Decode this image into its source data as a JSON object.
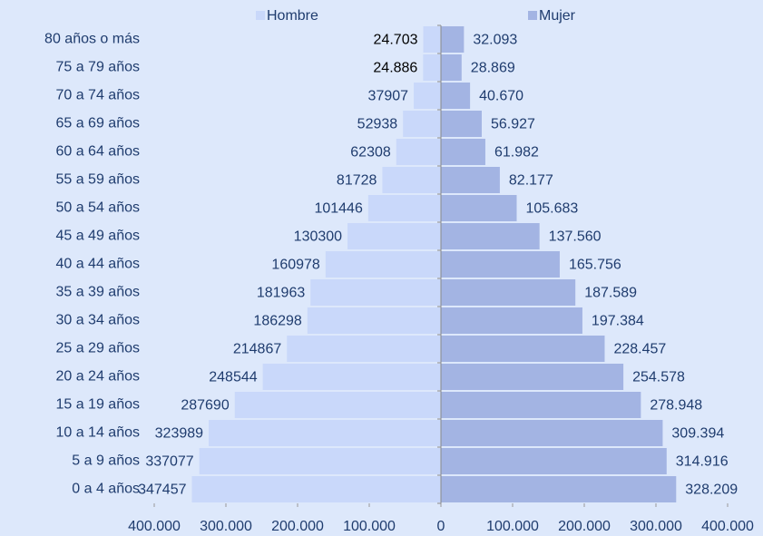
{
  "chart_data": {
    "type": "pyramid",
    "categories": [
      "80 años o más",
      "75 a 79 años",
      "70 a 74 años",
      "65 a 69 años",
      "60 a 64 años",
      "55 a 59 años",
      "50 a 54 años",
      "45 a 49 años",
      "40 a 44 años",
      "35 a 39 años",
      "30 a 34 años",
      "25 a 29 años",
      "20 a 24 años",
      "15 a 19 años",
      "10 a 14 años",
      "5 a 9 años",
      "0 a 4 años"
    ],
    "series": [
      {
        "name": "Hombre",
        "color": "#c9d8fa",
        "values": [
          24703,
          24886,
          37907,
          52938,
          62308,
          81728,
          101446,
          130300,
          160978,
          181963,
          186298,
          214867,
          248544,
          287690,
          323989,
          337077,
          347457
        ],
        "value_labels": [
          "24.703",
          "24.886",
          "37907",
          "52938",
          "62308",
          "81728",
          "101446",
          "130300",
          "160978",
          "181963",
          "186298",
          "214867",
          "248544",
          "287690",
          "323989",
          "337077",
          "347457"
        ]
      },
      {
        "name": "Mujer",
        "color": "#a3b4e3",
        "values": [
          32093,
          28869,
          40670,
          56927,
          61982,
          82177,
          105683,
          137560,
          165756,
          187589,
          197384,
          228457,
          254578,
          278948,
          309394,
          314916,
          328209
        ],
        "value_labels": [
          "32.093",
          "28.869",
          "40.670",
          "56.927",
          "61.982",
          "82.177",
          "105.683",
          "137.560",
          "165.756",
          "187.589",
          "197.384",
          "228.457",
          "254.578",
          "278.948",
          "309.394",
          "314.916",
          "328.209"
        ]
      }
    ],
    "xlim": [
      -400000,
      400000
    ],
    "xticks": [
      {
        "value": -400000,
        "label": "400.000"
      },
      {
        "value": -300000,
        "label": "300.000"
      },
      {
        "value": -200000,
        "label": "200.000"
      },
      {
        "value": -100000,
        "label": "100.000"
      },
      0,
      {
        "value": 100000,
        "label": "100.000"
      },
      {
        "value": 200000,
        "label": "200.000"
      },
      {
        "value": 300000,
        "label": "300.000"
      },
      {
        "value": 400000,
        "label": "400.000"
      }
    ]
  }
}
